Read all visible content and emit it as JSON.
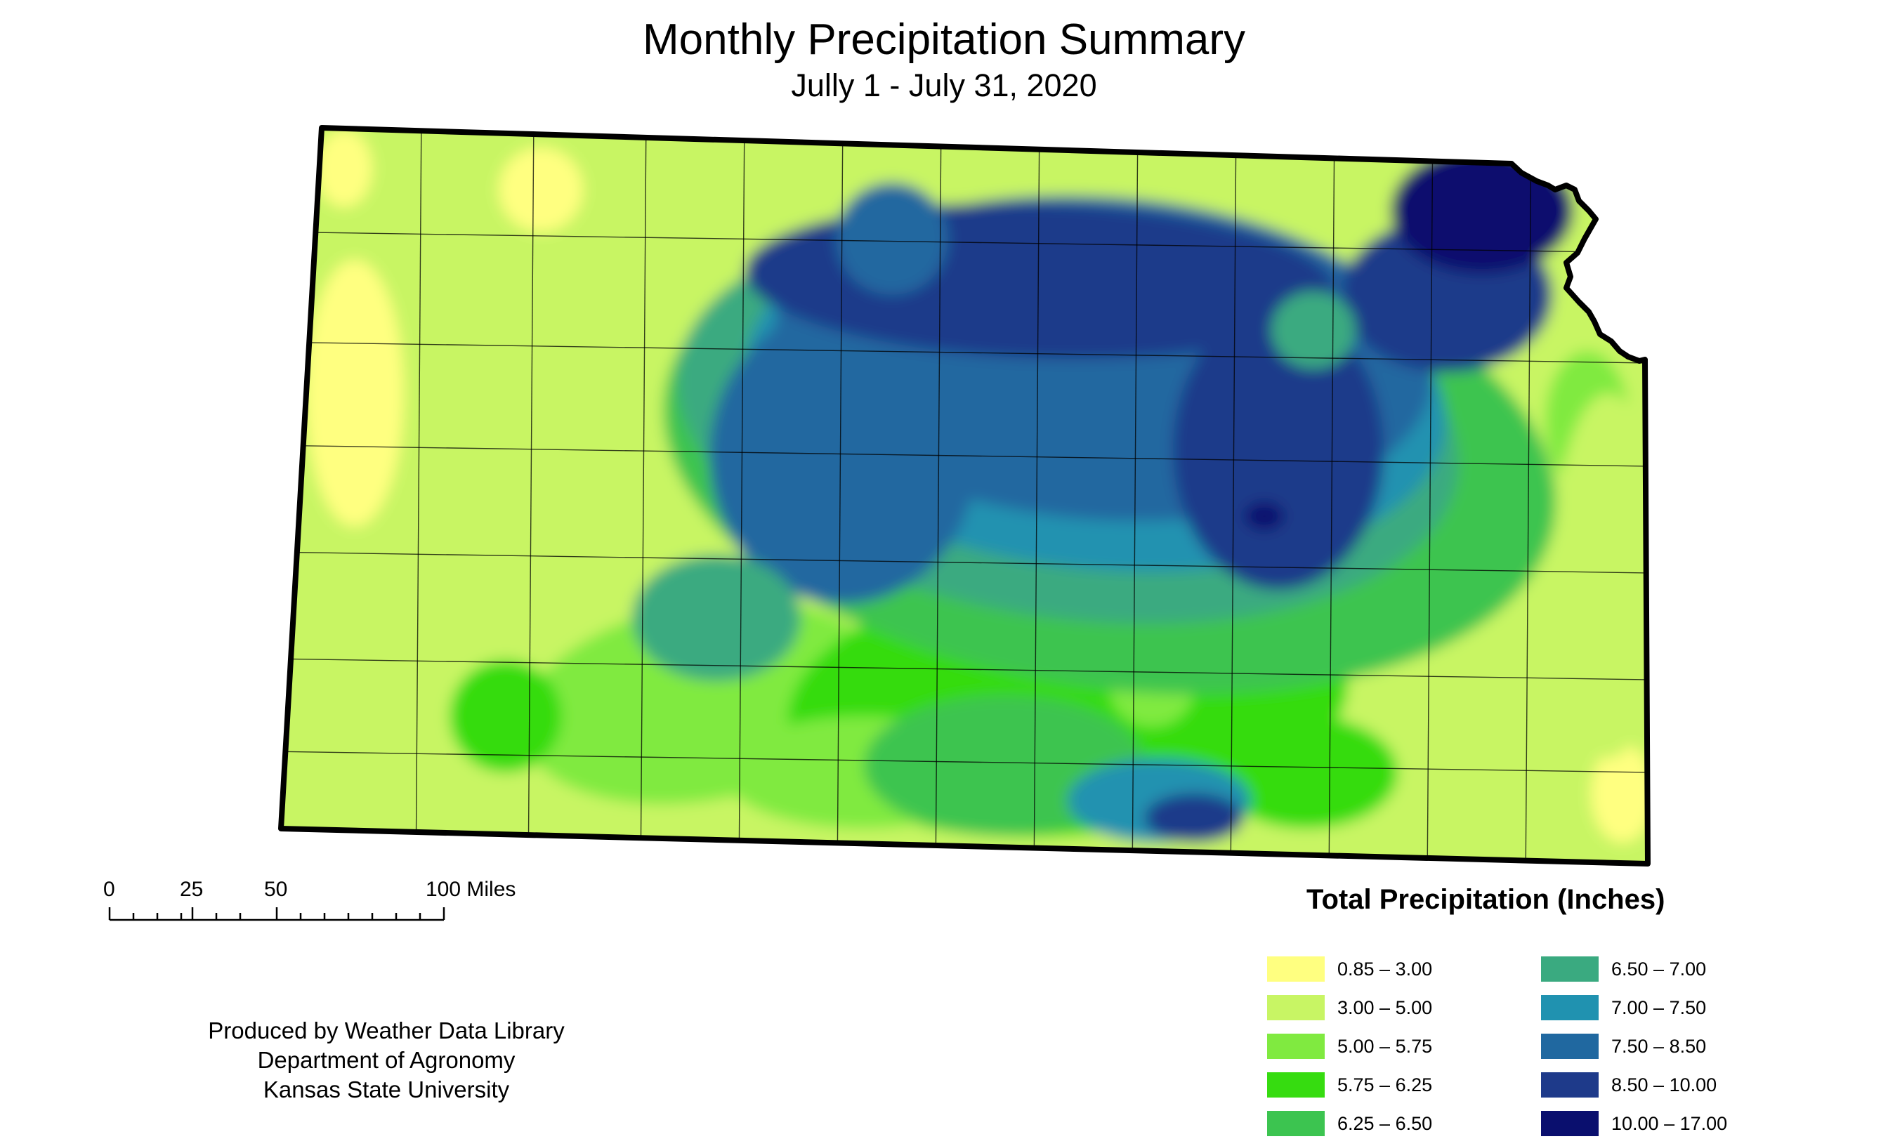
{
  "title": "Monthly Precipitation Summary",
  "subtitle": "Jully 1 - July 31, 2020",
  "scale_bar": {
    "ticks": [
      "0",
      "25",
      "50",
      "100 Miles"
    ]
  },
  "credits": [
    "Produced by Weather Data Library",
    "Department of Agronomy",
    "Kansas State University"
  ],
  "legend": {
    "title": "Total Precipitation (Inches)",
    "items": [
      {
        "label": "0.85 – 3.00",
        "color": "#ffff80"
      },
      {
        "label": "3.00 – 5.00",
        "color": "#c8f564"
      },
      {
        "label": "5.00 – 5.75",
        "color": "#80ea40"
      },
      {
        "label": "5.75 – 6.25",
        "color": "#36dc10"
      },
      {
        "label": "6.25 – 6.50",
        "color": "#3cc450"
      },
      {
        "label": "6.50 – 7.00",
        "color": "#3aaa80"
      },
      {
        "label": "7.00 – 7.50",
        "color": "#2092b0"
      },
      {
        "label": "7.50 – 8.50",
        "color": "#2068a0"
      },
      {
        "label": "8.50 – 10.00",
        "color": "#1e3a8a"
      },
      {
        "label": "10.00 – 17.00",
        "color": "#0a0f6e"
      }
    ]
  }
}
